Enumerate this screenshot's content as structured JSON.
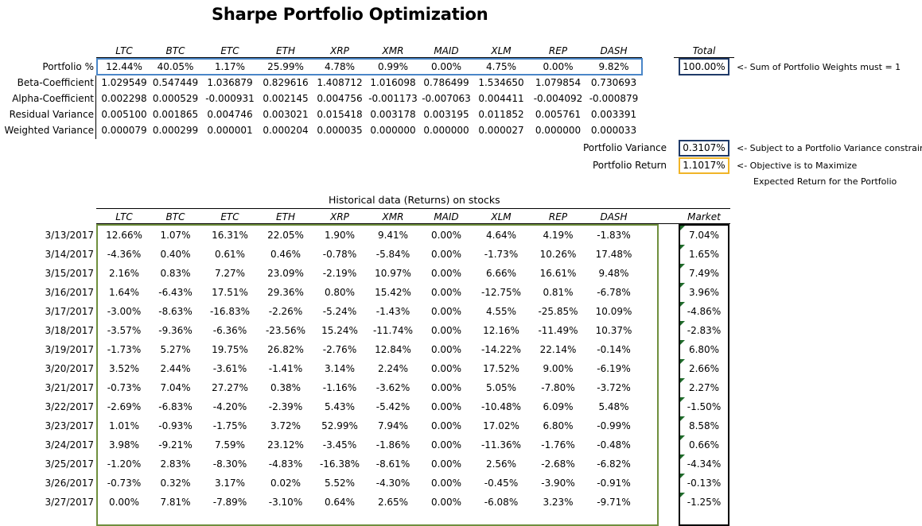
{
  "title": "Sharpe Portfolio Optimization",
  "tickers": [
    "LTC",
    "BTC",
    "ETC",
    "ETH",
    "XRP",
    "XMR",
    "MAID",
    "XLM",
    "REP",
    "DASH"
  ],
  "total_header": "Total",
  "market_header": "Market",
  "metrics": [
    {
      "label": "Portfolio %",
      "values": [
        "12.44%",
        "40.05%",
        "1.17%",
        "25.99%",
        "4.78%",
        "0.99%",
        "0.00%",
        "4.75%",
        "0.00%",
        "9.82%"
      ]
    },
    {
      "label": "Beta-Coefficient",
      "values": [
        "1.029549",
        "0.547449",
        "1.036879",
        "0.829616",
        "1.408712",
        "1.016098",
        "0.786499",
        "1.534650",
        "1.079854",
        "0.730693"
      ]
    },
    {
      "label": "Alpha-Coefficient",
      "values": [
        "0.002298",
        "0.000529",
        "-0.000931",
        "0.002145",
        "0.004756",
        "-0.001173",
        "-0.007063",
        "0.004411",
        "-0.004092",
        "-0.000879"
      ]
    },
    {
      "label": "Residual Variance",
      "values": [
        "0.005100",
        "0.001865",
        "0.004746",
        "0.003021",
        "0.015418",
        "0.003178",
        "0.003195",
        "0.011852",
        "0.005761",
        "0.003391"
      ]
    },
    {
      "label": "Weighted Variance",
      "values": [
        "0.000079",
        "0.000299",
        "0.000001",
        "0.000204",
        "0.000035",
        "0.000000",
        "0.000000",
        "0.000027",
        "0.000000",
        "0.000033"
      ]
    }
  ],
  "total_value": "100.00%",
  "total_note": "<- Sum of Portfolio Weights must = 1",
  "portfolio_variance": {
    "label": "Portfolio Variance",
    "value": "0.3107%",
    "note": "<- Subject to a Portfolio Variance constraint"
  },
  "portfolio_return": {
    "label": "Portfolio Return",
    "value": "1.1017%",
    "note1": "<- Objective is to Maximize",
    "note2": "Expected Return for the Portfolio"
  },
  "historical_title": "Historical data (Returns) on stocks",
  "history": [
    {
      "date": "3/13/2017",
      "values": [
        "12.66%",
        "1.07%",
        "16.31%",
        "22.05%",
        "1.90%",
        "9.41%",
        "0.00%",
        "4.64%",
        "4.19%",
        "-1.83%"
      ],
      "market": "7.04%"
    },
    {
      "date": "3/14/2017",
      "values": [
        "-4.36%",
        "0.40%",
        "0.61%",
        "0.46%",
        "-0.78%",
        "-5.84%",
        "0.00%",
        "-1.73%",
        "10.26%",
        "17.48%"
      ],
      "market": "1.65%"
    },
    {
      "date": "3/15/2017",
      "values": [
        "2.16%",
        "0.83%",
        "7.27%",
        "23.09%",
        "-2.19%",
        "10.97%",
        "0.00%",
        "6.66%",
        "16.61%",
        "9.48%"
      ],
      "market": "7.49%"
    },
    {
      "date": "3/16/2017",
      "values": [
        "1.64%",
        "-6.43%",
        "17.51%",
        "29.36%",
        "0.80%",
        "15.42%",
        "0.00%",
        "-12.75%",
        "0.81%",
        "-6.78%"
      ],
      "market": "3.96%"
    },
    {
      "date": "3/17/2017",
      "values": [
        "-3.00%",
        "-8.63%",
        "-16.83%",
        "-2.26%",
        "-5.24%",
        "-1.43%",
        "0.00%",
        "4.55%",
        "-25.85%",
        "10.09%"
      ],
      "market": "-4.86%"
    },
    {
      "date": "3/18/2017",
      "values": [
        "-3.57%",
        "-9.36%",
        "-6.36%",
        "-23.56%",
        "15.24%",
        "-11.74%",
        "0.00%",
        "12.16%",
        "-11.49%",
        "10.37%"
      ],
      "market": "-2.83%"
    },
    {
      "date": "3/19/2017",
      "values": [
        "-1.73%",
        "5.27%",
        "19.75%",
        "26.82%",
        "-2.76%",
        "12.84%",
        "0.00%",
        "-14.22%",
        "22.14%",
        "-0.14%"
      ],
      "market": "6.80%"
    },
    {
      "date": "3/20/2017",
      "values": [
        "3.52%",
        "2.44%",
        "-3.61%",
        "-1.41%",
        "3.14%",
        "2.24%",
        "0.00%",
        "17.52%",
        "9.00%",
        "-6.19%"
      ],
      "market": "2.66%"
    },
    {
      "date": "3/21/2017",
      "values": [
        "-0.73%",
        "7.04%",
        "27.27%",
        "0.38%",
        "-1.16%",
        "-3.62%",
        "0.00%",
        "5.05%",
        "-7.80%",
        "-3.72%"
      ],
      "market": "2.27%"
    },
    {
      "date": "3/22/2017",
      "values": [
        "-2.69%",
        "-6.83%",
        "-4.20%",
        "-2.39%",
        "5.43%",
        "-5.42%",
        "0.00%",
        "-10.48%",
        "6.09%",
        "5.48%"
      ],
      "market": "-1.50%"
    },
    {
      "date": "3/23/2017",
      "values": [
        "1.01%",
        "-0.93%",
        "-1.75%",
        "3.72%",
        "52.99%",
        "7.94%",
        "0.00%",
        "17.02%",
        "6.80%",
        "-0.99%"
      ],
      "market": "8.58%"
    },
    {
      "date": "3/24/2017",
      "values": [
        "3.98%",
        "-9.21%",
        "7.59%",
        "23.12%",
        "-3.45%",
        "-1.86%",
        "0.00%",
        "-11.36%",
        "-1.76%",
        "-0.48%"
      ],
      "market": "0.66%"
    },
    {
      "date": "3/25/2017",
      "values": [
        "-1.20%",
        "2.83%",
        "-8.30%",
        "-4.83%",
        "-16.38%",
        "-8.61%",
        "0.00%",
        "2.56%",
        "-2.68%",
        "-6.82%"
      ],
      "market": "-4.34%"
    },
    {
      "date": "3/26/2017",
      "values": [
        "-0.73%",
        "0.32%",
        "3.17%",
        "0.02%",
        "5.52%",
        "-4.30%",
        "0.00%",
        "-0.45%",
        "-3.90%",
        "-0.91%"
      ],
      "market": "-0.13%"
    },
    {
      "date": "3/27/2017",
      "values": [
        "0.00%",
        "7.81%",
        "-7.89%",
        "-3.10%",
        "0.64%",
        "2.65%",
        "0.00%",
        "-6.08%",
        "3.23%",
        "-9.71%"
      ],
      "market": "-1.25%"
    }
  ],
  "colors": {
    "portfolio_box": "#4a86c8",
    "total_box": "#1f3a68",
    "variance_box": "#1f3a68",
    "return_box": "#f0b428",
    "history_box": "#6f8f3e",
    "market_box": "#000000",
    "flag": "#1f6b2a"
  }
}
